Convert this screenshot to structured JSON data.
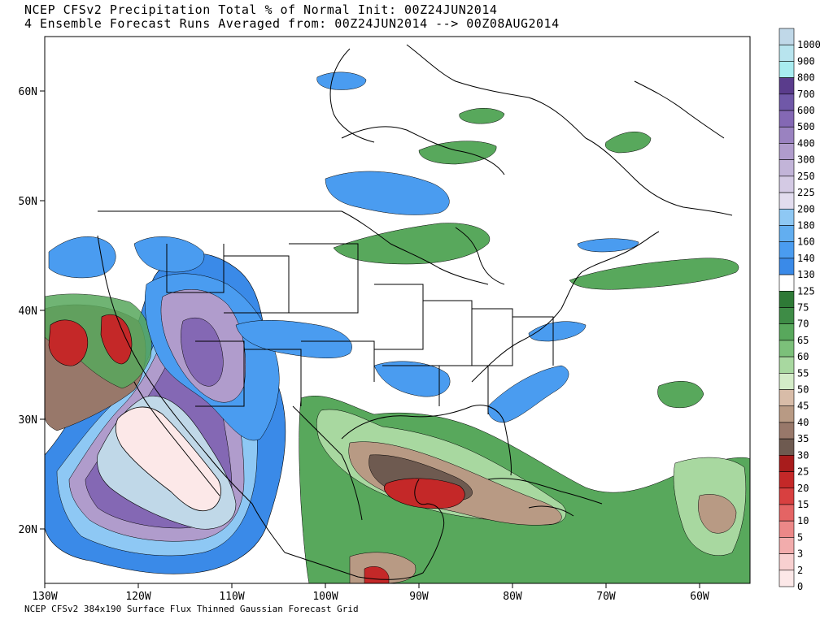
{
  "header": {
    "title_line1": "NCEP CFSv2 Precipitation Total % of Normal Init: 00Z24JUN2014",
    "title_line2": "4 Ensemble Forecast Runs Averaged from: 00Z24JUN2014 --> 00Z08AUG2014"
  },
  "footer": "NCEP CFSv2 384x190 Surface Flux Thinned Gaussian Forecast Grid",
  "axes": {
    "lon_labels": [
      "130W",
      "120W",
      "110W",
      "100W",
      "90W",
      "80W",
      "70W",
      "60W"
    ],
    "lat_labels": [
      "60N",
      "50N",
      "40N",
      "30N",
      "20N"
    ]
  },
  "colorbar": {
    "levels": [
      {
        "label": "1000",
        "color": "#c0d8e8"
      },
      {
        "label": "900",
        "color": "#b8e4ee"
      },
      {
        "label": "800",
        "color": "#a8ecf0"
      },
      {
        "label": "700",
        "color": "#5a3c8c"
      },
      {
        "label": "600",
        "color": "#7058a8"
      },
      {
        "label": "500",
        "color": "#8468b4"
      },
      {
        "label": "400",
        "color": "#9a82c0"
      },
      {
        "label": "300",
        "color": "#b09ccc"
      },
      {
        "label": "250",
        "color": "#c2b4d8"
      },
      {
        "label": "225",
        "color": "#d4cae4"
      },
      {
        "label": "200",
        "color": "#e2dcee"
      },
      {
        "label": "180",
        "color": "#8ec8f4"
      },
      {
        "label": "160",
        "color": "#62aef0"
      },
      {
        "label": "140",
        "color": "#4a9cf0"
      },
      {
        "label": "130",
        "color": "#3a8ae8"
      },
      {
        "label": "125",
        "color": "#ffffff"
      },
      {
        "label": "75",
        "color": "#2e7a36"
      },
      {
        "label": "70",
        "color": "#3e8c46"
      },
      {
        "label": "65",
        "color": "#58a85c"
      },
      {
        "label": "60",
        "color": "#7cc07a"
      },
      {
        "label": "55",
        "color": "#a8d8a0"
      },
      {
        "label": "50",
        "color": "#d4ecc8"
      },
      {
        "label": "45",
        "color": "#d8bca8"
      },
      {
        "label": "40",
        "color": "#b89a84"
      },
      {
        "label": "35",
        "color": "#98786a"
      },
      {
        "label": "30",
        "color": "#6e5a50"
      },
      {
        "label": "25",
        "color": "#a81c1c"
      },
      {
        "label": "20",
        "color": "#c42828"
      },
      {
        "label": "15",
        "color": "#d84040"
      },
      {
        "label": "10",
        "color": "#e46464"
      },
      {
        "label": "5",
        "color": "#ec8888"
      },
      {
        "label": "3",
        "color": "#f2acac"
      },
      {
        "label": "2",
        "color": "#f8d0d0"
      },
      {
        "label": "0",
        "color": "#fce8e8"
      }
    ]
  }
}
